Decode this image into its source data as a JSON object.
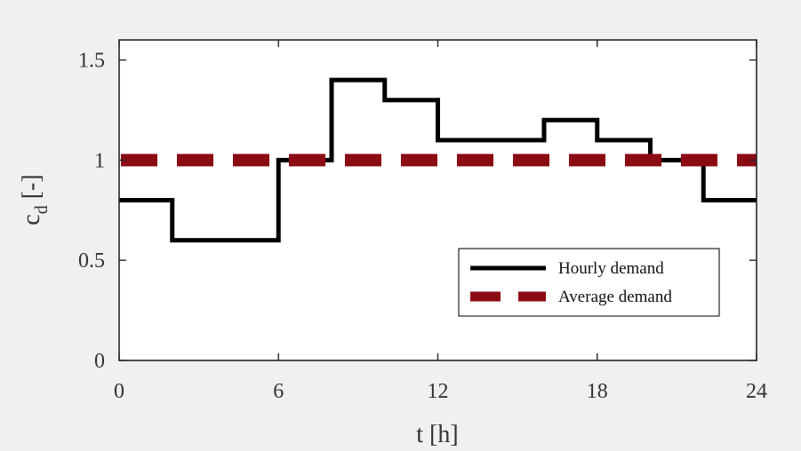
{
  "chart_data": {
    "type": "line",
    "xlabel": "t [h]",
    "ylabel_main": "c",
    "ylabel_sub": "d",
    "ylabel_rest": " [-]",
    "xlim": [
      0,
      24
    ],
    "ylim": [
      0,
      1.6
    ],
    "xticks": [
      0,
      6,
      12,
      18,
      24
    ],
    "xtick_labels": [
      "0",
      "6",
      "12",
      "18",
      "24"
    ],
    "yticks": [
      0,
      0.5,
      1,
      1.5
    ],
    "ytick_labels": [
      "0",
      "0.5",
      "1",
      "1.5"
    ],
    "grid": false,
    "legend_position": "bottom-right",
    "series": [
      {
        "name": "Hourly demand",
        "style": "step",
        "color": "#000000",
        "x": [
          0,
          2,
          4,
          6,
          8,
          10,
          12,
          14,
          16,
          18,
          20,
          22,
          24
        ],
        "y": [
          0.8,
          0.6,
          0.6,
          1.0,
          1.4,
          1.3,
          1.1,
          1.1,
          1.2,
          1.1,
          1.0,
          0.8,
          0.8
        ]
      },
      {
        "name": "Average demand",
        "style": "dashed",
        "color": "#8b0a14",
        "x": [
          0,
          24
        ],
        "y": [
          1.0,
          1.0
        ]
      }
    ]
  }
}
